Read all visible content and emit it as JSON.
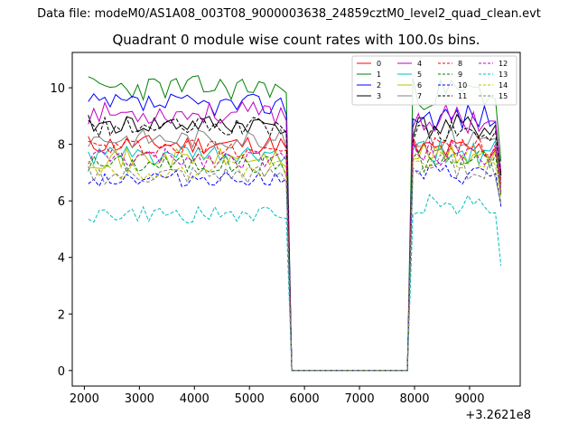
{
  "suptitle": "Data file: modeM0/AS1A08_003T08_9000003638_24859cztM0_level2_quad_clean.evt",
  "chart_data": {
    "type": "line",
    "title": "Quadrant 0 module wise count rates with 100.0s bins.",
    "xlabel": "",
    "ylabel": "",
    "x_offset_label": "+3.2621e8",
    "xlim": [
      1780,
      9920
    ],
    "ylim": [
      -0.55,
      11.25
    ],
    "x_ticks": [
      2000,
      3000,
      4000,
      5000,
      6000,
      7000,
      8000,
      9000
    ],
    "y_ticks": [
      0,
      2,
      4,
      6,
      8,
      10
    ],
    "grid": false,
    "legend_position": "top-right",
    "legend_columns": 4,
    "x_start": 2070,
    "x_step": 100,
    "gap_start": 5670,
    "gap_end": 7870,
    "x_end": 9570,
    "series": [
      {
        "name": "0",
        "color": "#ff0000",
        "dash": false,
        "level_pre": 8.0,
        "level_post": 7.8,
        "amp": 0.35,
        "seed": 11,
        "drop": 6.8
      },
      {
        "name": "1",
        "color": "#008000",
        "dash": false,
        "level_pre": 10.0,
        "level_post": 9.8,
        "amp": 0.45,
        "seed": 23,
        "drop": 7.4
      },
      {
        "name": "2",
        "color": "#0000ff",
        "dash": false,
        "level_pre": 9.4,
        "level_post": 9.0,
        "amp": 0.4,
        "seed": 37,
        "drop": 7.0
      },
      {
        "name": "3",
        "color": "#000000",
        "dash": false,
        "level_pre": 8.7,
        "level_post": 8.6,
        "amp": 0.35,
        "seed": 41,
        "drop": 6.9
      },
      {
        "name": "4",
        "color": "#c000c0",
        "dash": false,
        "level_pre": 9.1,
        "level_post": 8.9,
        "amp": 0.4,
        "seed": 53,
        "drop": 7.0
      },
      {
        "name": "5",
        "color": "#00bfbf",
        "dash": false,
        "level_pre": 7.6,
        "level_post": 7.7,
        "amp": 0.35,
        "seed": 61,
        "drop": 6.5
      },
      {
        "name": "6",
        "color": "#bfbf00",
        "dash": false,
        "level_pre": 7.5,
        "level_post": 7.6,
        "amp": 0.35,
        "seed": 71,
        "drop": 6.4
      },
      {
        "name": "7",
        "color": "#808080",
        "dash": false,
        "level_pre": 8.2,
        "level_post": 8.2,
        "amp": 0.35,
        "seed": 83,
        "drop": 6.7
      },
      {
        "name": "8",
        "color": "#ff0000",
        "dash": true,
        "level_pre": 7.9,
        "level_post": 7.9,
        "amp": 0.35,
        "seed": 97,
        "drop": 6.6
      },
      {
        "name": "9",
        "color": "#008000",
        "dash": true,
        "level_pre": 7.3,
        "level_post": 7.4,
        "amp": 0.35,
        "seed": 101,
        "drop": 6.2
      },
      {
        "name": "10",
        "color": "#0000ff",
        "dash": true,
        "level_pre": 6.8,
        "level_post": 6.9,
        "amp": 0.3,
        "seed": 113,
        "drop": 5.8
      },
      {
        "name": "11",
        "color": "#000000",
        "dash": true,
        "level_pre": 8.6,
        "level_post": 8.4,
        "amp": 0.35,
        "seed": 127,
        "drop": 6.9
      },
      {
        "name": "12",
        "color": "#c000c0",
        "dash": true,
        "level_pre": 7.5,
        "level_post": 7.7,
        "amp": 0.35,
        "seed": 131,
        "drop": 6.3
      },
      {
        "name": "13",
        "color": "#00bfbf",
        "dash": true,
        "level_pre": 5.5,
        "level_post": 5.9,
        "amp": 0.3,
        "seed": 149,
        "drop": 3.7
      },
      {
        "name": "14",
        "color": "#bfbf00",
        "dash": true,
        "level_pre": 7.1,
        "level_post": 7.5,
        "amp": 0.35,
        "seed": 151,
        "drop": 6.0
      },
      {
        "name": "15",
        "color": "#808080",
        "dash": true,
        "level_pre": 6.9,
        "level_post": 7.2,
        "amp": 0.35,
        "seed": 163,
        "drop": 5.9
      }
    ]
  }
}
